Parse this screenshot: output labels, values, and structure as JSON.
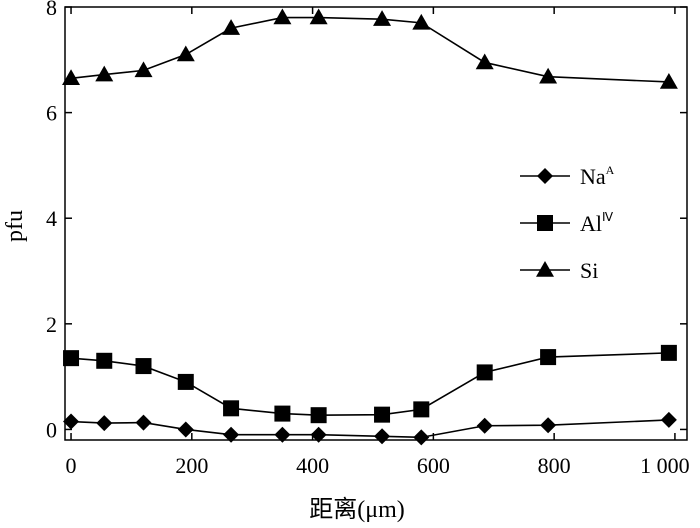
{
  "chart_data": {
    "type": "line",
    "xlabel": "距离(μm)",
    "ylabel": "pfu",
    "xlim": [
      -10,
      1020
    ],
    "ylim": [
      -0.2,
      8
    ],
    "x_ticks": [
      0,
      200,
      400,
      600,
      800,
      1000
    ],
    "x_tick_labels": [
      "0",
      "200",
      "400",
      "600",
      "800",
      "1 000"
    ],
    "y_ticks": [
      0,
      2,
      4,
      6,
      8
    ],
    "y_tick_labels": [
      "0",
      "2",
      "4",
      "6",
      "8"
    ],
    "legend_position": "right-middle",
    "series": [
      {
        "name": "Na",
        "superscript": "A",
        "marker": "diamond",
        "x": [
          0,
          55,
          120,
          190,
          265,
          350,
          410,
          515,
          580,
          685,
          790,
          990
        ],
        "y": [
          0.15,
          0.12,
          0.13,
          0.0,
          -0.1,
          -0.1,
          -0.1,
          -0.13,
          -0.15,
          0.07,
          0.08,
          0.18
        ]
      },
      {
        "name": "Al",
        "superscript": "Ⅳ",
        "marker": "square",
        "x": [
          0,
          55,
          120,
          190,
          265,
          350,
          410,
          515,
          580,
          685,
          790,
          990
        ],
        "y": [
          1.35,
          1.3,
          1.2,
          0.9,
          0.4,
          0.3,
          0.27,
          0.28,
          0.38,
          1.08,
          1.37,
          1.45
        ]
      },
      {
        "name": "Si",
        "marker": "triangle",
        "x": [
          0,
          55,
          120,
          190,
          265,
          350,
          410,
          515,
          580,
          685,
          790,
          990
        ],
        "y": [
          6.65,
          6.72,
          6.8,
          7.1,
          7.6,
          7.8,
          7.8,
          7.77,
          7.7,
          6.95,
          6.68,
          6.58
        ]
      }
    ]
  }
}
